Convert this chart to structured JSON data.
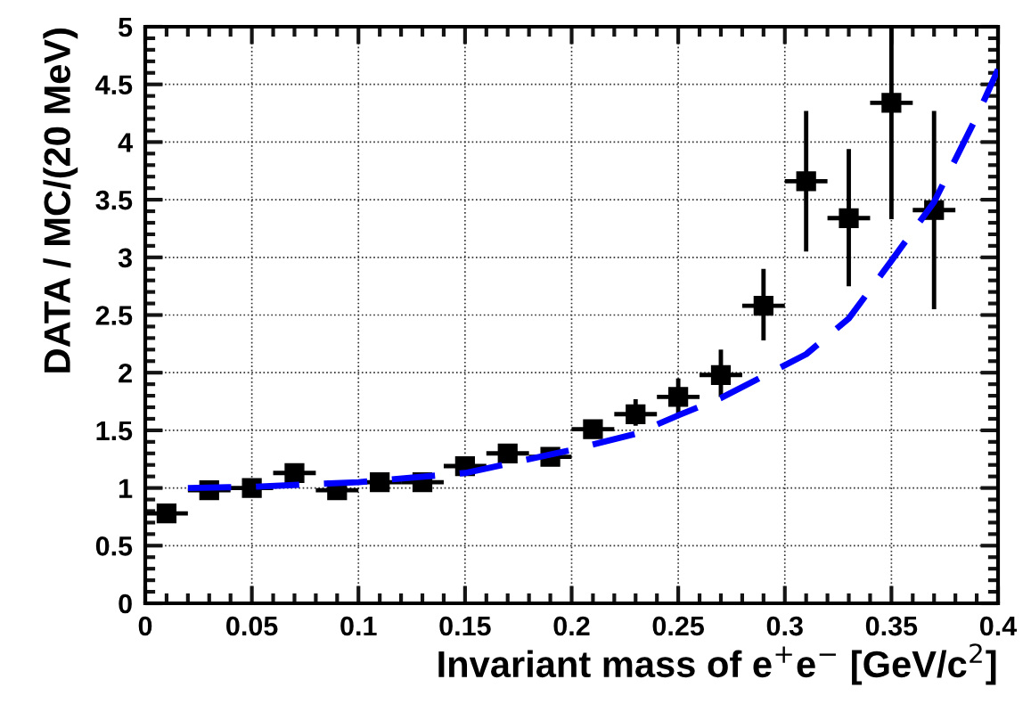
{
  "chart_data": {
    "type": "scatter",
    "xlabel": "Invariant mass of e$^{+}$e$^{−}$ [GeV/c$^{2}$]",
    "ylabel": "DATA / MC/(20 MeV)",
    "xlim": [
      0,
      0.4
    ],
    "ylim": [
      0,
      5
    ],
    "xticks": [
      0,
      0.05,
      0.1,
      0.15,
      0.2,
      0.25,
      0.3,
      0.35,
      0.4
    ],
    "yticks": [
      0,
      0.5,
      1,
      1.5,
      2,
      2.5,
      3,
      3.5,
      4,
      4.5,
      5
    ],
    "grid": true,
    "legend": false,
    "series": [
      {
        "color": "#000000",
        "marker": "square",
        "x": [
          0.01,
          0.03,
          0.05,
          0.07,
          0.09,
          0.11,
          0.13,
          0.15,
          0.17,
          0.19,
          0.21,
          0.23,
          0.25,
          0.27,
          0.29,
          0.31,
          0.33,
          0.35,
          0.37
        ],
        "values": [
          0.78,
          0.98,
          1.0,
          1.13,
          0.98,
          1.05,
          1.05,
          1.19,
          1.3,
          1.27,
          1.51,
          1.64,
          1.79,
          1.98,
          2.58,
          3.66,
          3.34,
          4.34,
          3.41
        ],
        "errors": [
          null,
          null,
          null,
          null,
          null,
          null,
          null,
          0.05,
          0.05,
          0.05,
          0.08,
          [
            1.54,
            1.77
          ],
          [
            1.64,
            1.95
          ],
          [
            1.79,
            2.2
          ],
          [
            2.28,
            2.9
          ],
          [
            3.05,
            4.27
          ],
          [
            2.75,
            3.94
          ],
          [
            3.33,
            5.0
          ],
          [
            2.55,
            4.27
          ]
        ],
        "xerrors": [
          0.01,
          0.01,
          0.01,
          0.01,
          0.01,
          0.01,
          0.01,
          0.01,
          0.01,
          0.01,
          0.01,
          0.01,
          0.01,
          0.01,
          0.01,
          0.01,
          0.01,
          0.01,
          0.01
        ]
      },
      {
        "type": "line",
        "color": "#0000ff",
        "line_style": "dashed",
        "marker": "none",
        "x": [
          0.02,
          0.05,
          0.1,
          0.15,
          0.2,
          0.23,
          0.25,
          0.27,
          0.29,
          0.31,
          0.33,
          0.35,
          0.37,
          0.39,
          0.4
        ],
        "values": [
          1.0,
          1.01,
          1.05,
          1.13,
          1.33,
          1.47,
          1.63,
          1.78,
          1.97,
          2.16,
          2.47,
          2.97,
          3.48,
          4.22,
          4.63
        ]
      }
    ]
  }
}
